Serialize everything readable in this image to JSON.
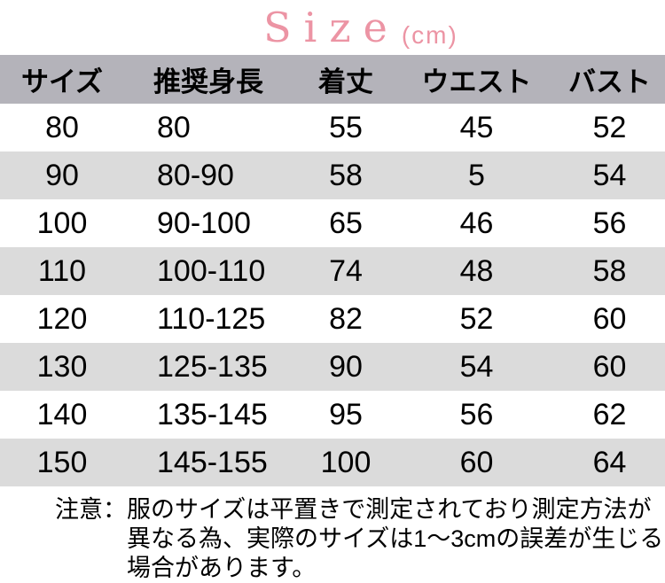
{
  "chart_data": {
    "type": "table",
    "title": "Size",
    "unit": "(cm)",
    "columns": [
      "サイズ",
      "推奨身長",
      "着丈",
      "ウエスト",
      "バスト"
    ],
    "rows": [
      [
        "80",
        "80",
        "55",
        "45",
        "52"
      ],
      [
        "90",
        "80-90",
        "58",
        "5",
        "54"
      ],
      [
        "100",
        "90-100",
        "65",
        "46",
        "56"
      ],
      [
        "110",
        "100-110",
        "74",
        "48",
        "58"
      ],
      [
        "120",
        "110-125",
        "82",
        "52",
        "60"
      ],
      [
        "130",
        "125-135",
        "90",
        "54",
        "60"
      ],
      [
        "140",
        "135-145",
        "95",
        "56",
        "62"
      ],
      [
        "150",
        "145-155",
        "100",
        "60",
        "64"
      ]
    ],
    "layout_hints": {
      "stripe_pattern": "alternating white and gray data rows, gray header row",
      "grid": false,
      "legend": "none"
    }
  },
  "note": {
    "label": "注意：",
    "lines": [
      "服のサイズは平置きで測定されており測定方法が",
      "異なる為、実際のサイズは1〜3cmの誤差が生じる",
      "場合があります。"
    ]
  },
  "colors": {
    "accent": "#ec94a4",
    "header-bg": "#b4b3ba",
    "stripe-bg": "#dbdbdb",
    "text": "#000000"
  }
}
